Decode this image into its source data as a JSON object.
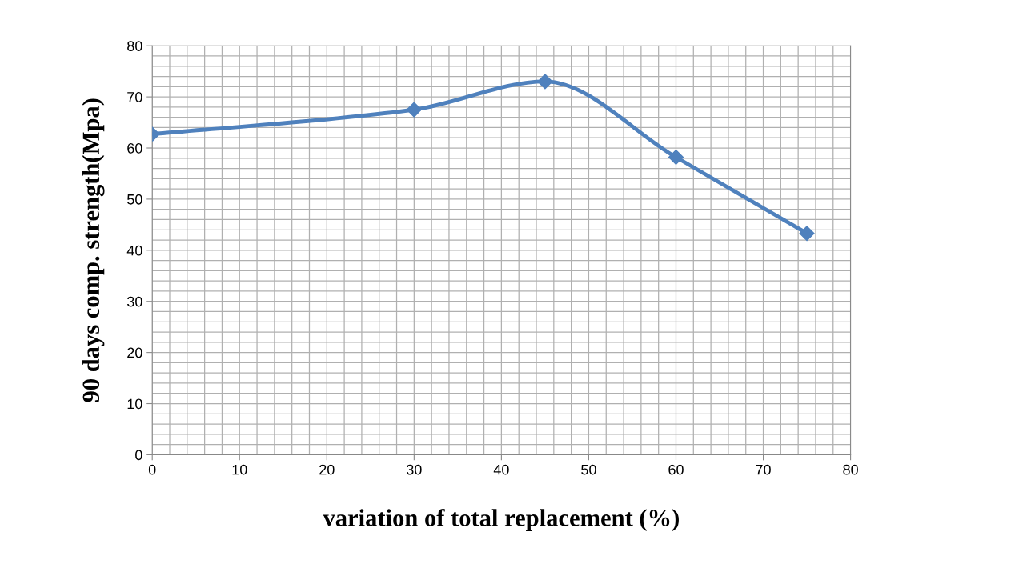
{
  "chart_data": {
    "type": "line",
    "xlabel": "variation of total replacement (%)",
    "ylabel": "90 days comp. strength(Mpa)",
    "x": [
      0,
      30,
      45,
      60,
      75
    ],
    "series": [
      {
        "color": "#4f81bd",
        "values": [
          62.7,
          67.5,
          73.0,
          58.2,
          43.3
        ]
      }
    ],
    "xlim": [
      0,
      80
    ],
    "xticks": [
      0,
      10,
      20,
      30,
      40,
      50,
      60,
      70,
      80
    ],
    "ylim": [
      0,
      80
    ],
    "yticks": [
      0,
      10,
      20,
      30,
      40,
      50,
      60,
      70,
      80
    ],
    "grid": true,
    "marker": "diamond",
    "line_style": "solid"
  }
}
